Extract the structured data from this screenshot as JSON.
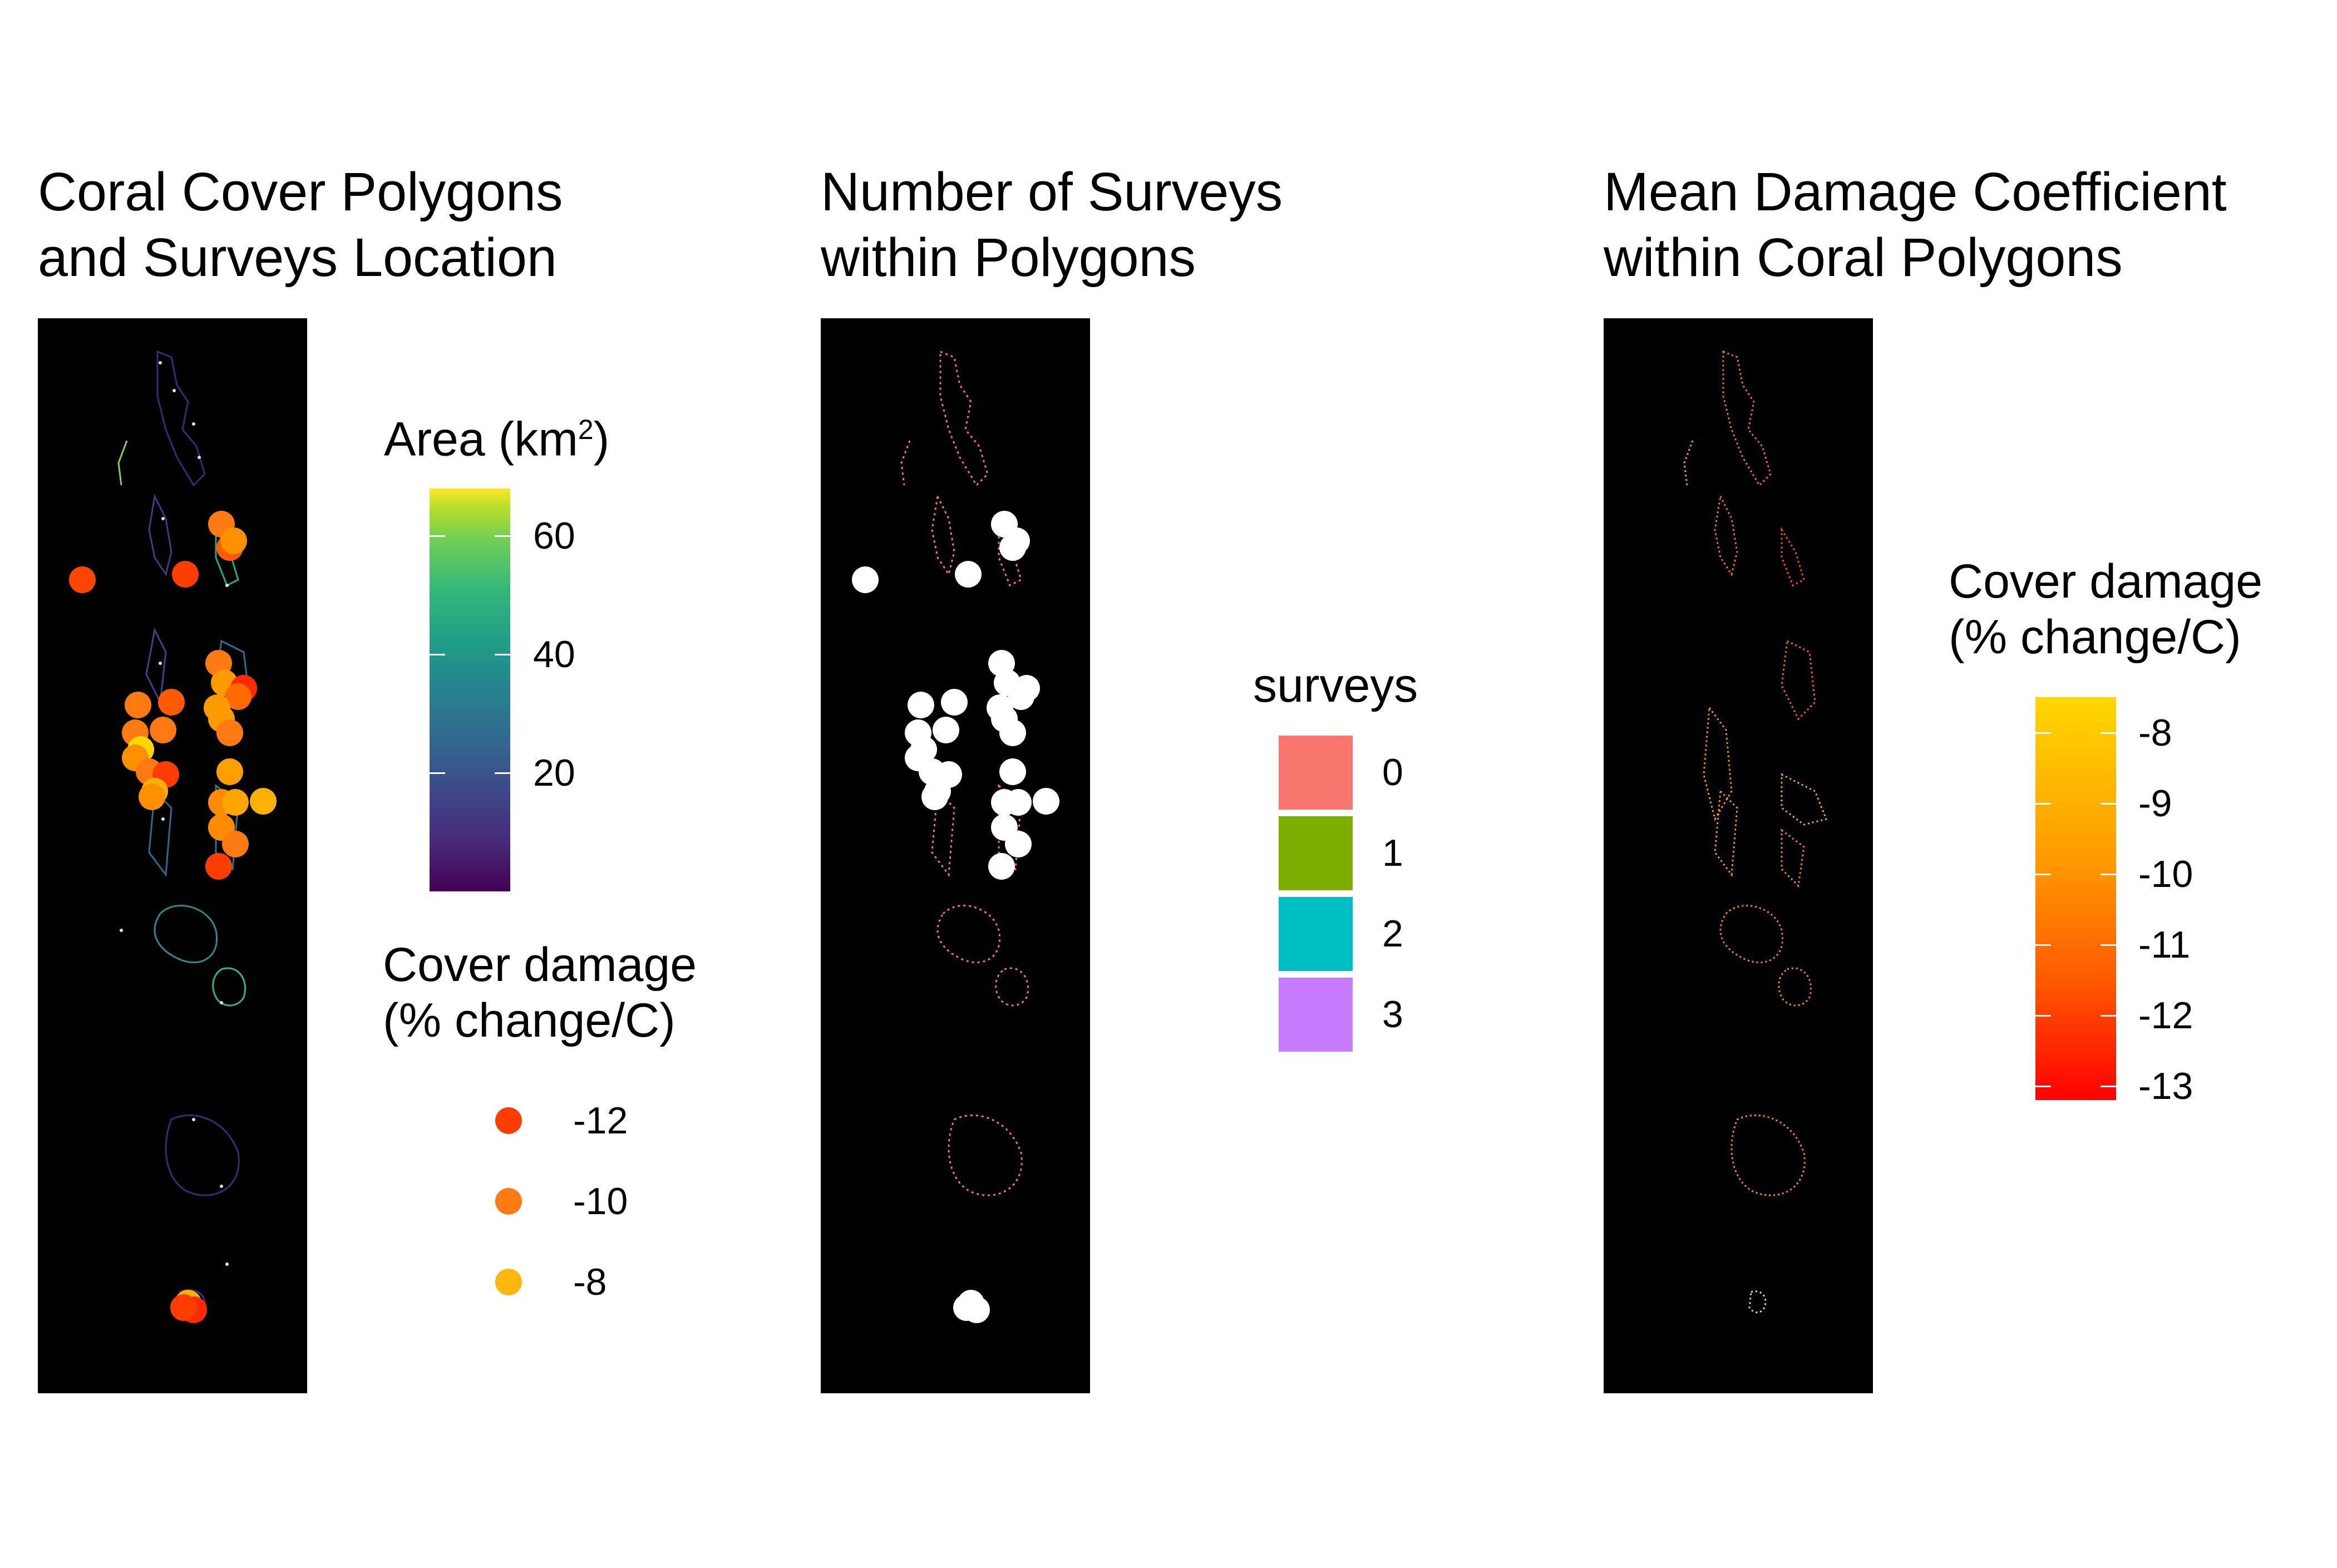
{
  "panels": [
    {
      "title_line1": "Coral Cover Polygons",
      "title_line2": "and Surveys Location"
    },
    {
      "title_line1": "Number of Surveys",
      "title_line2": "within Polygons"
    },
    {
      "title_line1": "Mean Damage Coefficient",
      "title_line2": "within Coral Polygons"
    }
  ],
  "legend_area": {
    "title_main": "Area (km",
    "title_sup": "2",
    "title_close": ")",
    "scale": "viridis",
    "range": [
      0,
      68
    ],
    "ticks": [
      "60",
      "40",
      "20"
    ],
    "tick_values": [
      60,
      40,
      20
    ]
  },
  "legend_cover_points": {
    "title_line1": "Cover damage",
    "title_line2": "(% change/C)",
    "items": [
      {
        "label": "-12",
        "color": "#ff3d00"
      },
      {
        "label": "-10",
        "color": "#ff7a12"
      },
      {
        "label": "-8",
        "color": "#ffb70f"
      }
    ]
  },
  "legend_surveys": {
    "title": "surveys",
    "items": [
      {
        "label": "0",
        "color": "#f8766d"
      },
      {
        "label": "1",
        "color": "#7cae00"
      },
      {
        "label": "2",
        "color": "#00bfc4"
      },
      {
        "label": "3",
        "color": "#c77cff"
      }
    ]
  },
  "legend_damage": {
    "title_line1": "Cover damage",
    "title_line2": "(% change/C)",
    "colors": {
      "low": "#ff0000",
      "high": "#ffd700"
    },
    "range": [
      -13.2,
      -7.5
    ],
    "ticks": [
      "-8",
      "-9",
      "-10",
      "-11",
      "-12",
      "-13"
    ],
    "tick_values": [
      -8,
      -9,
      -10,
      -11,
      -12,
      -13
    ]
  },
  "map_colors": {
    "background": "#000000",
    "survey_marker": "#ffffff",
    "polygon_outline_surveys": "#f8766d",
    "polygon_outline_damage": "#ff8c1a"
  }
}
